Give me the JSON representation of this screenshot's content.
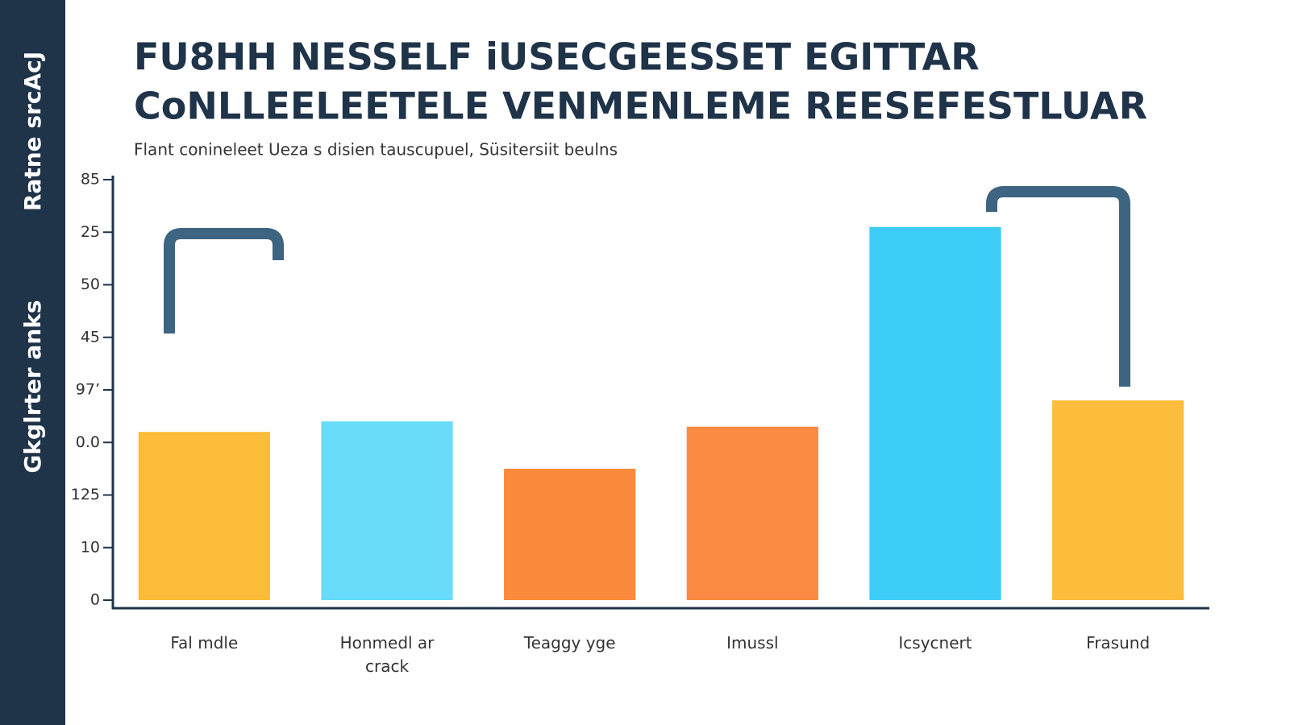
{
  "chart_data": {
    "type": "bar",
    "title": [
      "FU8HH NESSELF iUSECGEESSET EGITTAR",
      "CoNLLEELEETELE VENMENLEME REESEFESTLUAR"
    ],
    "subtitle": "Flant coninelеet Ueza s disien tauscupuel, Süsitersiit beulns",
    "sidebar_label": "Ratne srcAcJ",
    "ylabel": "Gkglrter anks",
    "categories": [
      "Fal mdle",
      "Honmedl ar crack",
      "Teaggy yge",
      "Imussl",
      "Icsycnert",
      "Frasund"
    ],
    "values": [
      32,
      34,
      25,
      33,
      71,
      38
    ],
    "colors": [
      "#fbbc3a",
      "#67dcfa",
      "#fb8a3c",
      "#fb8a42",
      "#3ecdf7",
      "#fbbd3b"
    ],
    "ylim": [
      0,
      80
    ],
    "yticks": [
      0,
      10,
      {
        "value": 20,
        "label": "125"
      },
      {
        "value": 30,
        "label": "0.0"
      },
      {
        "value": 40,
        "label": "97’"
      },
      {
        "value": 50,
        "label": "45"
      },
      {
        "value": 60,
        "label": "50"
      },
      {
        "value": 70,
        "label": "25"
      },
      {
        "value": 80,
        "label": "85"
      }
    ],
    "grid": false
  }
}
